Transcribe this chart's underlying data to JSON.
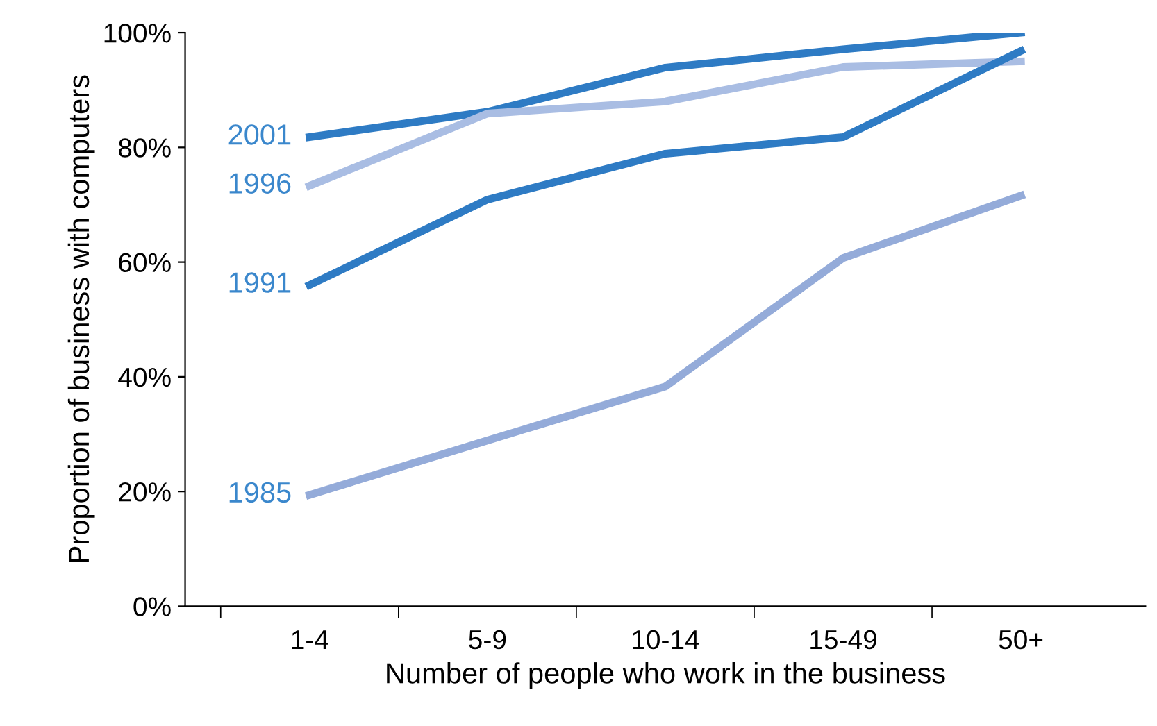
{
  "chart_data": {
    "type": "line",
    "xlabel": "Number of people who work in the business",
    "ylabel": "Proportion of business with computers",
    "categories": [
      "1-4",
      "5-9",
      "10-14",
      "15-49",
      "50+"
    ],
    "series": [
      {
        "name": "2001",
        "color": "#2e7bc4",
        "values": [
          81.8,
          86.2,
          93.9,
          97.1,
          100
        ]
      },
      {
        "name": "1996",
        "color": "#a9bde3",
        "values": [
          73.3,
          85.9,
          88,
          94,
          95
        ]
      },
      {
        "name": "1991",
        "color": "#2e7bc4",
        "values": [
          56,
          70.9,
          78.9,
          81.8,
          96.8
        ]
      },
      {
        "name": "1985",
        "color": "#94abd9",
        "values": [
          19.4,
          28.9,
          38.3,
          60.7,
          71.6
        ]
      }
    ],
    "ylim": [
      0,
      100
    ],
    "yticks": [
      {
        "value": 0,
        "label": "0%"
      },
      {
        "value": 20,
        "label": "20%"
      },
      {
        "value": 40,
        "label": "40%"
      },
      {
        "value": 60,
        "label": "60%"
      },
      {
        "value": 80,
        "label": "80%"
      },
      {
        "value": 100,
        "label": "100%"
      }
    ],
    "grid": false,
    "legend": false,
    "marker": "none",
    "line_style": "solid"
  }
}
